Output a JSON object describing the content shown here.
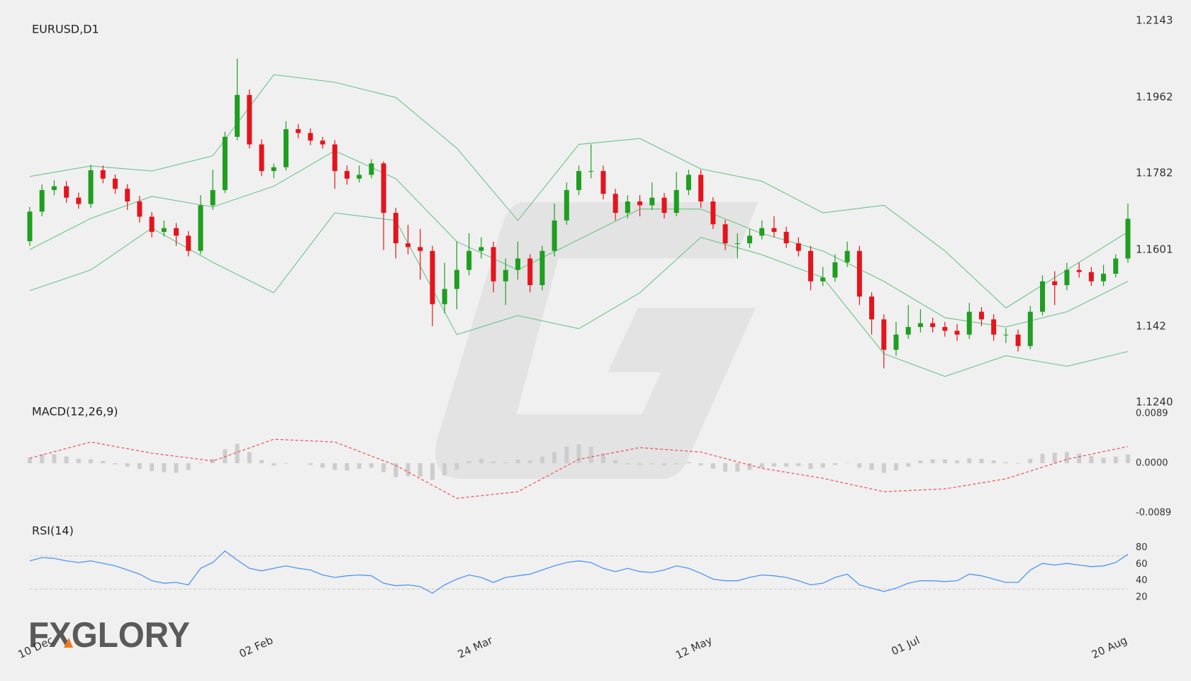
{
  "logo": "FXGLORY",
  "chart_data": [
    {
      "type": "candlestick",
      "title": "EURUSD,D1",
      "up_color": "#1f9e1f",
      "down_color": "#e5141c",
      "xlim": [
        0,
        90
      ],
      "xticks": [
        {
          "value": 2,
          "label": "10 Dec"
        },
        {
          "value": 20,
          "label": "02 Feb"
        },
        {
          "value": 38,
          "label": "24 Mar"
        },
        {
          "value": 56,
          "label": "12 May"
        },
        {
          "value": 73,
          "label": "01 Jul"
        },
        {
          "value": 90,
          "label": "20 Aug"
        }
      ],
      "ylim": [
        1.124,
        1.2143
      ],
      "yticks": [
        1.2143,
        1.1962,
        1.1782,
        1.1601,
        1.142,
        {
          "value": 1.124,
          "label": "1.1240"
        }
      ],
      "open": [
        1.1621,
        1.1691,
        1.1742,
        1.1751,
        1.1724,
        1.1709,
        1.1789,
        1.1769,
        1.1745,
        1.1715,
        1.1679,
        1.1643,
        1.1652,
        1.1634,
        1.1598,
        1.1706,
        1.1742,
        1.1868,
        1.1967,
        1.185,
        1.1787,
        1.1796,
        1.1886,
        1.1877,
        1.1859,
        1.185,
        1.1787,
        1.1769,
        1.1778,
        1.1805,
        1.1688,
        1.1616,
        1.1607,
        1.1598,
        1.1472,
        1.1508,
        1.1553,
        1.1598,
        1.1607,
        1.1526,
        1.1553,
        1.158,
        1.1517,
        1.1598,
        1.167,
        1.1742,
        1.1787,
        1.1787,
        1.1733,
        1.1688,
        1.1715,
        1.1706,
        1.1724,
        1.1688,
        1.1742,
        1.1778,
        1.1715,
        1.1661,
        1.1616,
        1.1616,
        1.1634,
        1.1652,
        1.1643,
        1.1616,
        1.1598,
        1.1526,
        1.1535,
        1.1571,
        1.1598,
        1.149,
        1.1436,
        1.1364,
        1.14,
        1.1418,
        1.1427,
        1.1418,
        1.1409,
        1.14,
        1.1454,
        1.1436,
        1.14,
        1.14,
        1.1373,
        1.1454,
        1.1526,
        1.1517,
        1.1553,
        1.1548,
        1.1526,
        1.1544,
        1.158
      ],
      "high": [
        1.1702,
        1.1755,
        1.1765,
        1.1763,
        1.1736,
        1.1802,
        1.18,
        1.1779,
        1.1756,
        1.1728,
        1.169,
        1.167,
        1.1664,
        1.1645,
        1.173,
        1.179,
        1.188,
        1.2053,
        1.198,
        1.1862,
        1.1805,
        1.1905,
        1.1898,
        1.1888,
        1.1868,
        1.186,
        1.18,
        1.18,
        1.1815,
        1.181,
        1.17,
        1.166,
        1.165,
        1.161,
        1.157,
        1.162,
        1.164,
        1.163,
        1.162,
        1.158,
        1.162,
        1.159,
        1.161,
        1.171,
        1.176,
        1.18,
        1.185,
        1.18,
        1.1745,
        1.173,
        1.173,
        1.176,
        1.1735,
        1.1785,
        1.179,
        1.179,
        1.1725,
        1.1672,
        1.164,
        1.165,
        1.167,
        1.168,
        1.1655,
        1.163,
        1.161,
        1.156,
        1.159,
        1.162,
        1.161,
        1.15,
        1.1448,
        1.143,
        1.147,
        1.146,
        1.144,
        1.143,
        1.1425,
        1.1475,
        1.1465,
        1.1448,
        1.1415,
        1.1412,
        1.1468,
        1.154,
        1.155,
        1.157,
        1.157,
        1.156,
        1.1565,
        1.159,
        1.171
      ],
      "low": [
        1.161,
        1.168,
        1.173,
        1.1712,
        1.1698,
        1.17,
        1.1758,
        1.1733,
        1.1695,
        1.1665,
        1.163,
        1.1632,
        1.161,
        1.1585,
        1.159,
        1.1695,
        1.1735,
        1.186,
        1.184,
        1.1775,
        1.177,
        1.1788,
        1.1865,
        1.1848,
        1.184,
        1.1745,
        1.1755,
        1.176,
        1.177,
        1.16,
        1.158,
        1.159,
        1.153,
        1.142,
        1.145,
        1.146,
        1.154,
        1.158,
        1.15,
        1.147,
        1.153,
        1.15,
        1.1505,
        1.1585,
        1.166,
        1.173,
        1.177,
        1.172,
        1.167,
        1.1675,
        1.168,
        1.1695,
        1.1675,
        1.168,
        1.173,
        1.17,
        1.165,
        1.16,
        1.158,
        1.1605,
        1.1625,
        1.163,
        1.1605,
        1.1585,
        1.1505,
        1.1515,
        1.1525,
        1.156,
        1.147,
        1.14,
        1.132,
        1.135,
        1.139,
        1.1405,
        1.1405,
        1.1395,
        1.1385,
        1.139,
        1.142,
        1.1385,
        1.138,
        1.136,
        1.1365,
        1.1445,
        1.147,
        1.1505,
        1.1535,
        1.1515,
        1.1515,
        1.1535,
        1.157
      ],
      "close": [
        1.1691,
        1.1742,
        1.1751,
        1.1724,
        1.1709,
        1.1789,
        1.1769,
        1.1745,
        1.1715,
        1.1679,
        1.1643,
        1.1652,
        1.1634,
        1.1598,
        1.1706,
        1.1742,
        1.1868,
        1.1967,
        1.185,
        1.1787,
        1.1796,
        1.1886,
        1.1877,
        1.1859,
        1.185,
        1.1787,
        1.1769,
        1.1778,
        1.1805,
        1.1688,
        1.1616,
        1.1607,
        1.1598,
        1.1472,
        1.1508,
        1.1553,
        1.1598,
        1.1607,
        1.1526,
        1.1553,
        1.158,
        1.1517,
        1.1598,
        1.167,
        1.1742,
        1.1787,
        1.1787,
        1.1733,
        1.1688,
        1.1715,
        1.1706,
        1.1724,
        1.1688,
        1.1742,
        1.1778,
        1.1715,
        1.1661,
        1.1616,
        1.1616,
        1.1634,
        1.1652,
        1.1643,
        1.1616,
        1.1598,
        1.1526,
        1.1535,
        1.1571,
        1.1598,
        1.149,
        1.1436,
        1.1364,
        1.14,
        1.1418,
        1.1427,
        1.1418,
        1.1409,
        1.14,
        1.1454,
        1.1436,
        1.14,
        1.14,
        1.1373,
        1.1454,
        1.1526,
        1.1517,
        1.1553,
        1.1548,
        1.1526,
        1.1544,
        1.158,
        1.1674
      ],
      "bands": {
        "color": "#6cc48c",
        "x": [
          0,
          5,
          10,
          15,
          20,
          25,
          30,
          35,
          40,
          45,
          50,
          55,
          60,
          65,
          70,
          75,
          80,
          85,
          90
        ],
        "upper": [
          1.1774,
          1.1799,
          1.1787,
          1.1823,
          1.2015,
          1.1997,
          1.1961,
          1.1841,
          1.167,
          1.185,
          1.1864,
          1.1792,
          1.1763,
          1.1688,
          1.1706,
          1.1598,
          1.1463,
          1.1553,
          1.1643
        ],
        "middle": [
          1.1601,
          1.1675,
          1.1727,
          1.1702,
          1.1751,
          1.1835,
          1.1769,
          1.162,
          1.1553,
          1.1625,
          1.1697,
          1.1697,
          1.1639,
          1.1598,
          1.1526,
          1.144,
          1.1418,
          1.1454,
          1.1526
        ],
        "lower": [
          1.1504,
          1.1553,
          1.1652,
          1.1571,
          1.1499,
          1.1688,
          1.167,
          1.14,
          1.1445,
          1.1414,
          1.1499,
          1.163,
          1.1589,
          1.1535,
          1.1355,
          1.1301,
          1.135,
          1.1325,
          1.136
        ]
      }
    },
    {
      "type": "macd",
      "title": "MACD(12,26,9)",
      "ylim": [
        -0.0089,
        0.0089
      ],
      "yticks": [
        0.0089,
        {
          "value": 0,
          "label": "0.0000"
        },
        -0.0089
      ],
      "histogram_color": "#cdcdcd",
      "histogram": [
        0.001,
        0.0016,
        0.0016,
        0.0012,
        0.0008,
        0.0007,
        0.0004,
        -0.0002,
        -0.0006,
        -0.001,
        -0.0014,
        -0.0016,
        -0.0017,
        -0.0012,
        0.0001,
        0.0008,
        0.0025,
        0.0035,
        0.002,
        0.0006,
        -0.0004,
        -0.0001,
        0,
        -0.0003,
        -0.0008,
        -0.0012,
        -0.0013,
        -0.001,
        -0.0008,
        -0.0016,
        -0.0025,
        -0.0023,
        -0.0024,
        -0.003,
        -0.0022,
        -0.0012,
        0.0004,
        0.0008,
        0.0003,
        0.0002,
        0.0007,
        0.0005,
        0.0012,
        0.002,
        0.003,
        0.0034,
        0.003,
        0.0018,
        0.0006,
        -0.0002,
        -0.0003,
        -0.0002,
        -0.0004,
        -0.0002,
        0.0002,
        -0.0004,
        -0.001,
        -0.0015,
        -0.0015,
        -0.0012,
        -0.0008,
        -0.0006,
        -0.0006,
        -0.0005,
        -0.001,
        -0.0008,
        -0.0003,
        0.0001,
        -0.0008,
        -0.0012,
        -0.0017,
        -0.0013,
        -0.0006,
        0.0005,
        0.0007,
        0.0007,
        0.0005,
        0.0009,
        0.0008,
        0.0005,
        0.0002,
        -0.0001,
        0.0008,
        0.0017,
        0.0019,
        0.002,
        0.0017,
        0.0013,
        0.001,
        0.0012,
        0.0016
      ],
      "signal": {
        "color": "#f05a5a",
        "x": [
          0,
          5,
          10,
          15,
          20,
          25,
          30,
          35,
          40,
          45,
          50,
          55,
          60,
          65,
          70,
          75,
          80,
          85,
          90
        ],
        "values": [
          0.0009,
          0.0038,
          0.0018,
          0.0004,
          0.0043,
          0.0038,
          -0.0004,
          -0.0063,
          -0.0051,
          0.0007,
          0.0028,
          0.002,
          -0.0009,
          -0.0027,
          -0.0051,
          -0.0046,
          -0.0028,
          0.0007,
          0.003
        ]
      }
    },
    {
      "type": "line",
      "title": "RSI(14)",
      "color": "#4f96f0",
      "ylim": [
        20,
        80
      ],
      "yticks": [
        80,
        60,
        40,
        20
      ],
      "levels": [
        70,
        30
      ],
      "values": [
        64,
        68,
        67,
        64,
        62,
        64,
        61,
        58,
        53,
        48,
        40,
        37,
        38,
        35,
        55,
        62,
        76,
        65,
        55,
        52,
        55,
        58,
        55,
        53,
        47,
        44,
        46,
        47,
        46,
        37,
        34,
        35,
        33,
        25,
        35,
        42,
        47,
        44,
        38,
        44,
        46,
        48,
        53,
        58,
        62,
        64,
        62,
        55,
        51,
        55,
        51,
        50,
        53,
        58,
        55,
        49,
        42,
        40,
        40,
        44,
        47,
        46,
        44,
        40,
        35,
        37,
        44,
        48,
        35,
        31,
        27,
        31,
        37,
        40,
        40,
        39,
        40,
        48,
        46,
        42,
        38,
        38,
        53,
        61,
        59,
        61,
        59,
        57,
        58,
        62,
        72
      ]
    }
  ]
}
